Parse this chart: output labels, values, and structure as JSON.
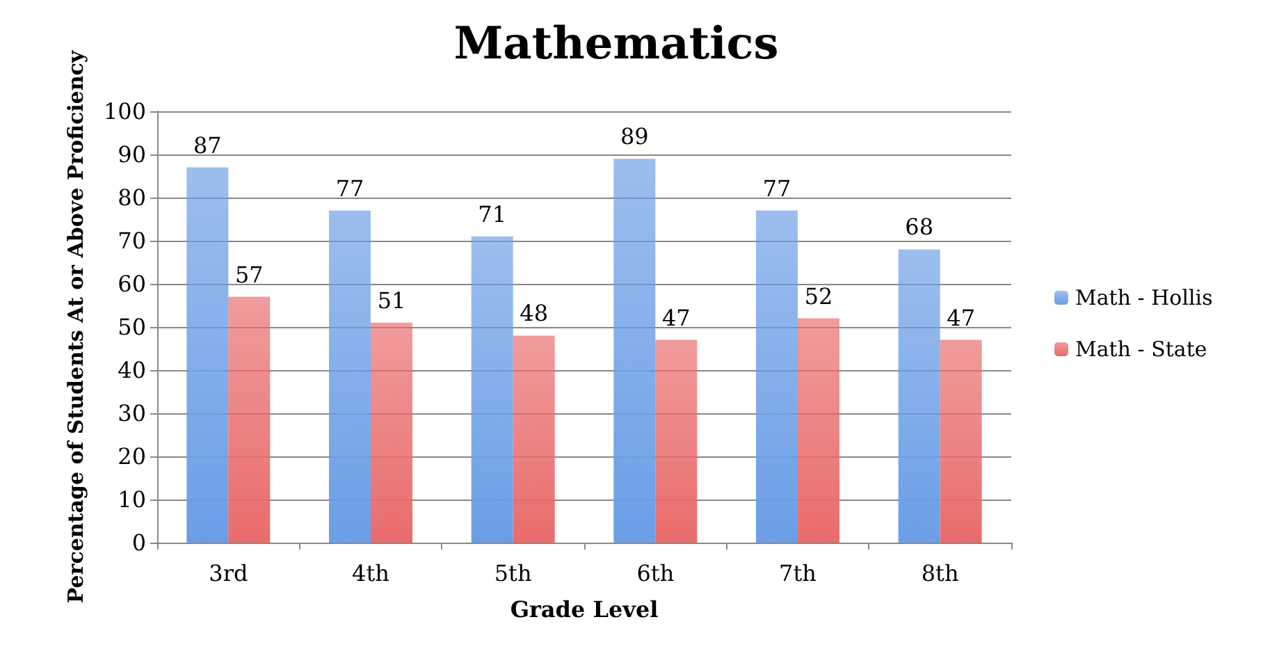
{
  "chart_data": {
    "type": "bar",
    "title": "Mathematics",
    "xlabel": "Grade Level",
    "ylabel": "Percentage of Students At or Above Proficiency",
    "categories": [
      "3rd",
      "4th",
      "5th",
      "6th",
      "7th",
      "8th"
    ],
    "series": [
      {
        "name": "Math - Hollis",
        "color": "#6b9ee6",
        "values": [
          87,
          77,
          71,
          89,
          77,
          68
        ]
      },
      {
        "name": "Math - State",
        "color": "#e96b6b",
        "values": [
          57,
          51,
          48,
          47,
          52,
          47
        ]
      }
    ],
    "ylim": [
      0,
      100
    ],
    "yticks": [
      0,
      10,
      20,
      30,
      40,
      50,
      60,
      70,
      80,
      90,
      100
    ],
    "grid": "y",
    "legend": "right",
    "data_labels": true
  }
}
